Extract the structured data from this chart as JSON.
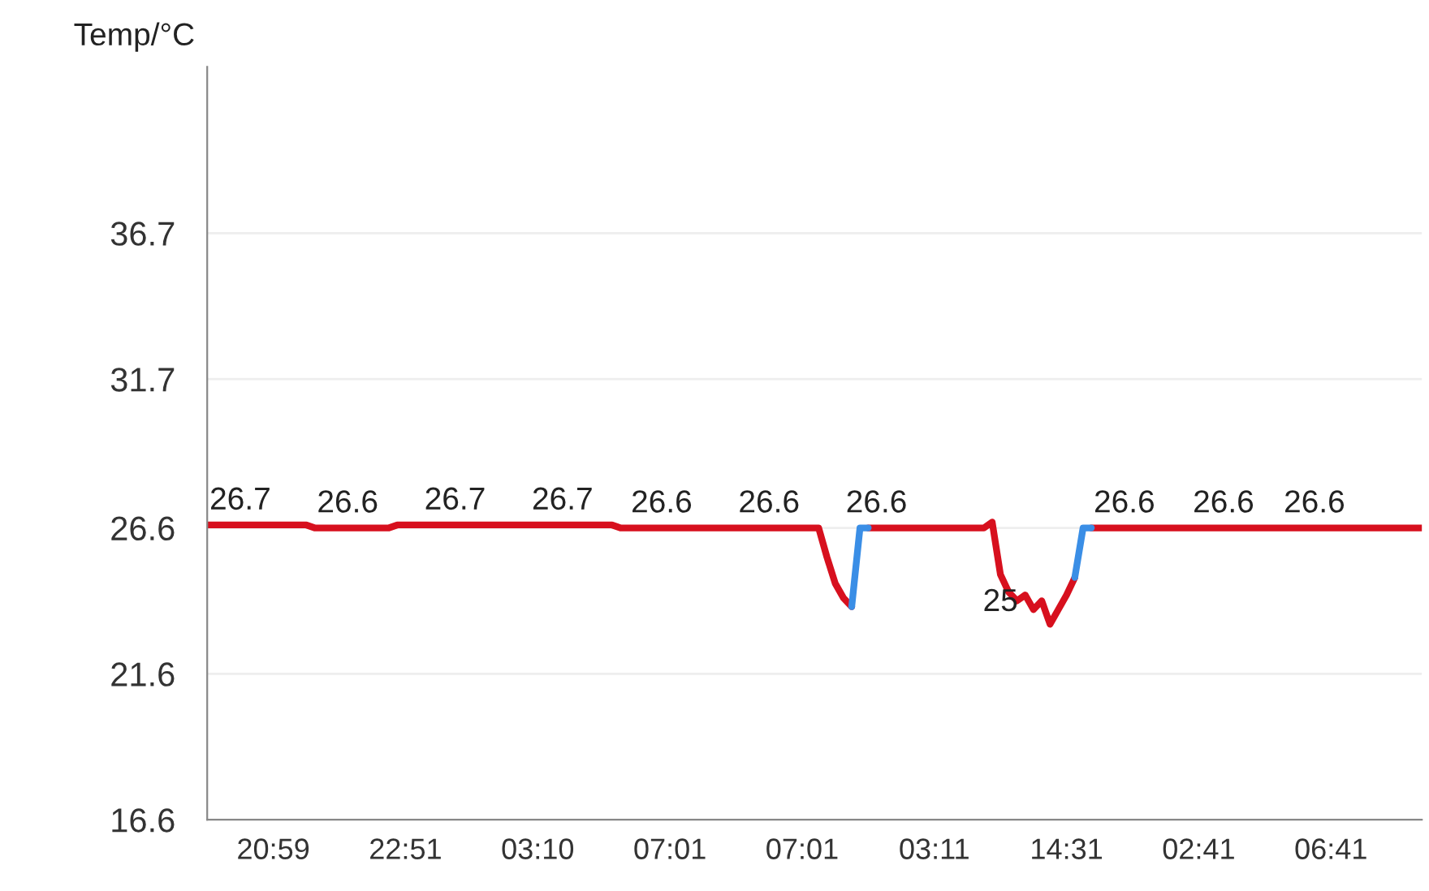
{
  "chart_data": {
    "type": "line",
    "ylabel": "Temp/°C",
    "categories": [
      null,
      null,
      null,
      null,
      null,
      null,
      null,
      null,
      "20:59",
      null,
      null,
      null,
      null,
      null,
      null,
      null,
      null,
      null,
      null,
      null,
      null,
      null,
      null,
      null,
      "22:51",
      null,
      null,
      null,
      null,
      null,
      null,
      null,
      null,
      null,
      null,
      null,
      null,
      null,
      null,
      null,
      "03:10",
      null,
      null,
      null,
      null,
      null,
      null,
      null,
      null,
      null,
      null,
      null,
      null,
      null,
      null,
      null,
      "07:01",
      null,
      null,
      null,
      null,
      null,
      null,
      null,
      null,
      null,
      null,
      null,
      null,
      null,
      null,
      null,
      "07:01",
      null,
      null,
      null,
      null,
      null,
      null,
      null,
      null,
      null,
      null,
      null,
      null,
      null,
      null,
      null,
      "03:11",
      null,
      null,
      null,
      null,
      null,
      null,
      null,
      null,
      null,
      null,
      null,
      null,
      null,
      null,
      null,
      "14:31",
      null,
      null,
      null,
      null,
      null,
      null,
      null,
      null,
      null,
      null,
      null,
      null,
      null,
      null,
      null,
      "02:41",
      null,
      null,
      null,
      null,
      null,
      null,
      null,
      null,
      null,
      null,
      null,
      null,
      null,
      null,
      null,
      "06:41",
      null,
      null,
      null,
      null,
      null,
      null,
      null,
      null,
      null,
      null,
      null
    ],
    "ylim": [
      16.6,
      42.4
    ],
    "yticks": [
      16.6,
      21.6,
      26.6,
      31.7,
      36.7
    ],
    "grid": "y",
    "legend": false,
    "marker": "none",
    "line_style": "solid",
    "series": [
      {
        "color": "#d7101e",
        "values": [
          26.7,
          26.7,
          26.7,
          26.7,
          26.7,
          26.7,
          26.7,
          26.7,
          26.7,
          26.7,
          26.7,
          26.7,
          26.7,
          26.6,
          26.6,
          26.6,
          26.6,
          26.6,
          26.6,
          26.6,
          26.6,
          26.6,
          26.6,
          26.7,
          26.7,
          26.7,
          26.7,
          26.7,
          26.7,
          26.7,
          26.7,
          26.7,
          26.7,
          26.7,
          26.7,
          26.7,
          26.7,
          26.7,
          26.7,
          26.7,
          26.7,
          26.7,
          26.7,
          26.7,
          26.7,
          26.7,
          26.7,
          26.7,
          26.7,
          26.7,
          26.6,
          26.6,
          26.6,
          26.6,
          26.6,
          26.6,
          26.6,
          26.6,
          26.6,
          26.6,
          26.6,
          26.6,
          26.6,
          26.6,
          26.6,
          26.6,
          26.6,
          26.6,
          26.6,
          26.6,
          26.6,
          26.6,
          26.6,
          26.6,
          26.6,
          25.6,
          24.7,
          24.2,
          23.9,
          null,
          26.6,
          26.6,
          26.6,
          26.6,
          26.6,
          26.6,
          26.6,
          26.6,
          26.6,
          26.6,
          26.6,
          26.6,
          26.6,
          26.6,
          26.6,
          26.8,
          25,
          24.4,
          24.1,
          24.3,
          23.8,
          24.1,
          23.3,
          23.8,
          24.3,
          24.9,
          null,
          26.6,
          26.6,
          26.6,
          26.6,
          26.6,
          26.6,
          26.6,
          26.6,
          26.6,
          26.6,
          26.6,
          26.6,
          26.6,
          26.6,
          26.6,
          26.6,
          26.6,
          26.6,
          26.6,
          26.6,
          26.6,
          26.6,
          26.6,
          26.6,
          26.6,
          26.6,
          26.6,
          26.6,
          26.6,
          26.6,
          26.6,
          26.6,
          26.6,
          26.6,
          26.6,
          26.6,
          26.6,
          26.6,
          26.6,
          26.6,
          26.6
        ],
        "value_labels": [
          null,
          null,
          null,
          null,
          "26.7",
          null,
          null,
          null,
          null,
          null,
          null,
          null,
          null,
          null,
          null,
          null,
          null,
          "26.6",
          null,
          null,
          null,
          null,
          null,
          null,
          null,
          null,
          null,
          null,
          null,
          null,
          "26.7",
          null,
          null,
          null,
          null,
          null,
          null,
          null,
          null,
          null,
          null,
          null,
          null,
          "26.7",
          null,
          null,
          null,
          null,
          null,
          null,
          null,
          null,
          null,
          null,
          null,
          "26.6",
          null,
          null,
          null,
          null,
          null,
          null,
          null,
          null,
          null,
          null,
          null,
          null,
          "26.6",
          null,
          null,
          null,
          null,
          null,
          null,
          null,
          null,
          null,
          null,
          null,
          null,
          "26.6",
          null,
          null,
          null,
          null,
          null,
          null,
          null,
          null,
          null,
          null,
          null,
          null,
          null,
          null,
          "25",
          null,
          null,
          null,
          null,
          null,
          null,
          null,
          null,
          null,
          null,
          null,
          null,
          null,
          null,
          "26.6",
          null,
          null,
          null,
          null,
          null,
          null,
          null,
          null,
          null,
          null,
          null,
          "26.6",
          null,
          null,
          null,
          null,
          null,
          null,
          null,
          null,
          null,
          null,
          "26.6",
          null,
          null,
          null,
          null,
          null,
          null,
          null,
          null,
          null,
          null,
          null,
          null,
          null
        ]
      },
      {
        "color": "#3a8ee6",
        "values": [
          null,
          null,
          null,
          null,
          null,
          null,
          null,
          null,
          null,
          null,
          null,
          null,
          null,
          null,
          null,
          null,
          null,
          null,
          null,
          null,
          null,
          null,
          null,
          null,
          null,
          null,
          null,
          null,
          null,
          null,
          null,
          null,
          null,
          null,
          null,
          null,
          null,
          null,
          null,
          null,
          null,
          null,
          null,
          null,
          null,
          null,
          null,
          null,
          null,
          null,
          null,
          null,
          null,
          null,
          null,
          null,
          null,
          null,
          null,
          null,
          null,
          null,
          null,
          null,
          null,
          null,
          null,
          null,
          null,
          null,
          null,
          null,
          null,
          null,
          null,
          null,
          null,
          null,
          23.9,
          26.6,
          26.6,
          null,
          null,
          null,
          null,
          null,
          null,
          null,
          null,
          null,
          null,
          null,
          null,
          null,
          null,
          null,
          null,
          null,
          null,
          null,
          null,
          null,
          null,
          null,
          null,
          24.9,
          26.6,
          26.6,
          null,
          null,
          null,
          null,
          null,
          null,
          null,
          null,
          null,
          null,
          null,
          null,
          null,
          null,
          null,
          null,
          null,
          null,
          null,
          null,
          null,
          null,
          null,
          null,
          null,
          null,
          null,
          null,
          null,
          null,
          null,
          null,
          null,
          null,
          null,
          null,
          null,
          null,
          null,
          null
        ]
      }
    ]
  }
}
